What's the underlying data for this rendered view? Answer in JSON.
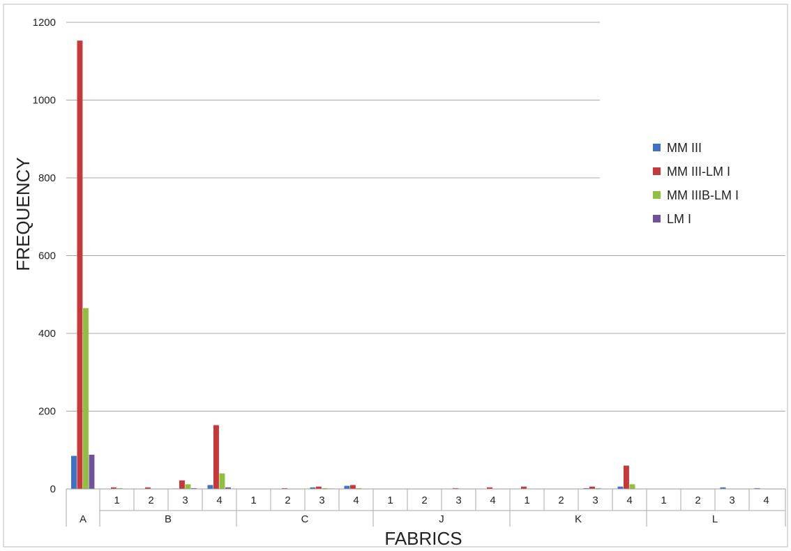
{
  "chart_data": {
    "type": "bar",
    "xlabel": "FABRICS",
    "ylabel": "FREQUENCY",
    "ylim": [
      0,
      1200
    ],
    "yticks": [
      0,
      200,
      400,
      600,
      800,
      1000,
      1200
    ],
    "grid": true,
    "legend_position": "right",
    "groups": [
      {
        "label": "A",
        "subs": [
          ""
        ]
      },
      {
        "label": "B",
        "subs": [
          "1",
          "2",
          "3",
          "4"
        ]
      },
      {
        "label": "C",
        "subs": [
          "1",
          "2",
          "3",
          "4"
        ]
      },
      {
        "label": "J",
        "subs": [
          "1",
          "2",
          "3",
          "4"
        ]
      },
      {
        "label": "K",
        "subs": [
          "1",
          "2",
          "3",
          "4"
        ]
      },
      {
        "label": "L",
        "subs": [
          "1",
          "2",
          "3",
          "4"
        ]
      }
    ],
    "series": [
      {
        "name": "MM III",
        "color": "#3d72c4",
        "values": [
          85,
          0,
          0,
          1,
          10,
          0,
          0,
          4,
          8,
          0,
          0,
          0,
          0,
          0,
          0,
          2,
          6,
          0,
          0,
          4,
          2
        ]
      },
      {
        "name": "MM III-LM I",
        "color": "#c6393a",
        "values": [
          1153,
          4,
          4,
          22,
          164,
          0,
          2,
          6,
          10,
          0,
          0,
          2,
          4,
          6,
          0,
          6,
          60,
          0,
          0,
          0,
          0
        ]
      },
      {
        "name": "MM IIIB-LM I",
        "color": "#8fc13e",
        "values": [
          465,
          2,
          0,
          12,
          40,
          0,
          0,
          2,
          2,
          0,
          0,
          0,
          0,
          0,
          0,
          2,
          12,
          0,
          0,
          0,
          0
        ]
      },
      {
        "name": "LM I",
        "color": "#7052a0",
        "values": [
          88,
          0,
          0,
          2,
          4,
          0,
          0,
          1,
          0,
          0,
          0,
          0,
          0,
          0,
          0,
          0,
          0,
          0,
          0,
          0,
          0
        ]
      }
    ]
  }
}
